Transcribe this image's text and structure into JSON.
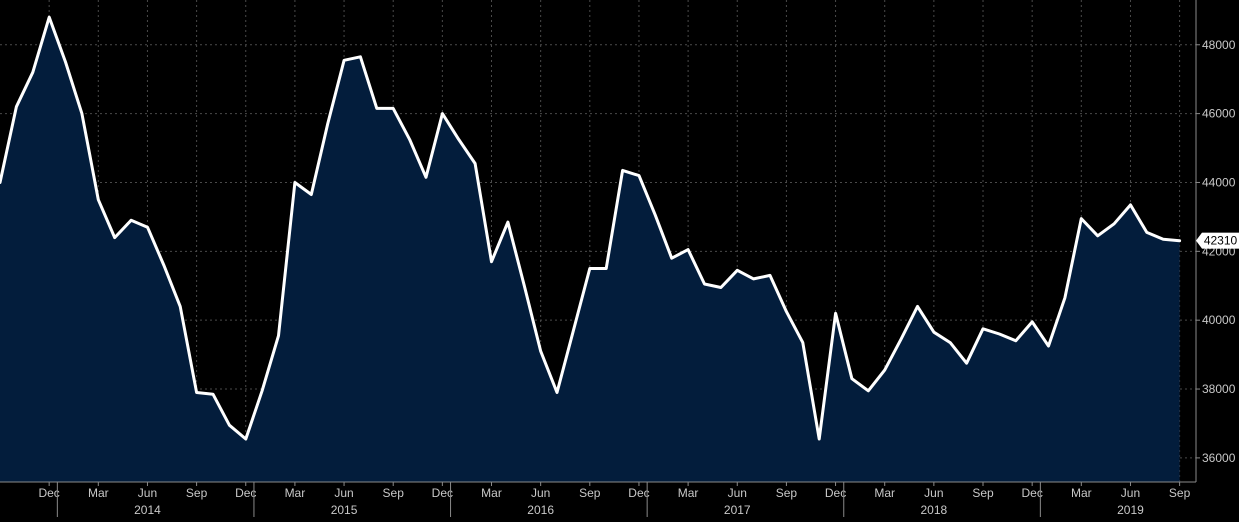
{
  "chart_data": {
    "type": "area",
    "title": "",
    "xlabel": "",
    "ylabel": "",
    "ylim": [
      35300,
      49300
    ],
    "x_range": [
      "2013-09",
      "2019-10"
    ],
    "y_ticks": [
      36000,
      38000,
      40000,
      42000,
      44000,
      46000,
      48000
    ],
    "y_tick_labels": [
      "36000",
      "38000",
      "40000",
      "42000",
      "44000",
      "46000",
      "48000"
    ],
    "x_ticks": [
      {
        "date": "2013-12",
        "label": "Dec"
      },
      {
        "date": "2014-03",
        "label": "Mar"
      },
      {
        "date": "2014-06",
        "label": "Jun"
      },
      {
        "date": "2014-09",
        "label": "Sep"
      },
      {
        "date": "2014-12",
        "label": "Dec"
      },
      {
        "date": "2015-03",
        "label": "Mar"
      },
      {
        "date": "2015-06",
        "label": "Jun"
      },
      {
        "date": "2015-09",
        "label": "Sep"
      },
      {
        "date": "2015-12",
        "label": "Dec"
      },
      {
        "date": "2016-03",
        "label": "Mar"
      },
      {
        "date": "2016-06",
        "label": "Jun"
      },
      {
        "date": "2016-09",
        "label": "Sep"
      },
      {
        "date": "2016-12",
        "label": "Dec"
      },
      {
        "date": "2017-03",
        "label": "Mar"
      },
      {
        "date": "2017-06",
        "label": "Jun"
      },
      {
        "date": "2017-09",
        "label": "Sep"
      },
      {
        "date": "2017-12",
        "label": "Dec"
      },
      {
        "date": "2018-03",
        "label": "Mar"
      },
      {
        "date": "2018-06",
        "label": "Jun"
      },
      {
        "date": "2018-09",
        "label": "Sep"
      },
      {
        "date": "2018-12",
        "label": "Dec"
      },
      {
        "date": "2019-03",
        "label": "Mar"
      },
      {
        "date": "2019-06",
        "label": "Jun"
      },
      {
        "date": "2019-09",
        "label": "Sep"
      }
    ],
    "year_labels": [
      {
        "label": "2014",
        "center": "2014-06"
      },
      {
        "label": "2015",
        "center": "2015-06"
      },
      {
        "label": "2016",
        "center": "2016-06"
      },
      {
        "label": "2017",
        "center": "2017-06"
      },
      {
        "label": "2018",
        "center": "2018-06"
      },
      {
        "label": "2019",
        "center": "2019-06"
      }
    ],
    "year_boundaries": [
      "2014-01",
      "2015-01",
      "2016-01",
      "2017-01",
      "2018-01",
      "2019-01"
    ],
    "last_value_label": "42310",
    "grid": true,
    "colors": {
      "background": "#000000",
      "area_fill": "#031d3c",
      "line": "#ffffff",
      "grid": "#4a4a4a",
      "axis_text": "#c8c8c8",
      "last_label_bg": "#ffffff",
      "last_label_text": "#000000"
    },
    "series": [
      {
        "x": [
          "2013-09",
          "2013-10",
          "2013-11",
          "2013-12",
          "2014-01",
          "2014-02",
          "2014-03",
          "2014-04",
          "2014-05",
          "2014-06",
          "2014-07",
          "2014-08",
          "2014-09",
          "2014-10",
          "2014-11",
          "2014-12",
          "2015-01",
          "2015-02",
          "2015-03",
          "2015-04",
          "2015-05",
          "2015-06",
          "2015-07",
          "2015-08",
          "2015-09",
          "2015-10",
          "2015-11",
          "2015-12",
          "2016-01",
          "2016-02",
          "2016-03",
          "2016-04",
          "2016-05",
          "2016-06",
          "2016-07",
          "2016-08",
          "2016-09",
          "2016-10",
          "2016-11",
          "2016-12",
          "2017-01",
          "2017-02",
          "2017-03",
          "2017-04",
          "2017-05",
          "2017-06",
          "2017-07",
          "2017-08",
          "2017-09",
          "2017-10",
          "2017-11",
          "2017-12",
          "2018-01",
          "2018-02",
          "2018-03",
          "2018-04",
          "2018-05",
          "2018-06",
          "2018-07",
          "2018-08",
          "2018-09",
          "2018-10",
          "2018-11",
          "2018-12",
          "2019-01",
          "2019-02",
          "2019-03",
          "2019-04",
          "2019-05",
          "2019-06",
          "2019-07",
          "2019-08",
          "2019-09"
        ],
        "values": [
          44000,
          46200,
          47200,
          48800,
          47500,
          46000,
          43500,
          42400,
          42900,
          42700,
          41600,
          40400,
          37900,
          37850,
          36950,
          36550,
          37950,
          39550,
          44000,
          43650,
          45700,
          47550,
          47650,
          46150,
          46150,
          45250,
          44150,
          46000,
          45250,
          44550,
          41700,
          42850,
          41000,
          39100,
          37900,
          39700,
          41500,
          41500,
          44350,
          44200,
          43050,
          41800,
          42050,
          41050,
          40950,
          41450,
          41200,
          41300,
          40250,
          39350,
          36550,
          40200,
          38300,
          37950,
          38550,
          39450,
          40400,
          39650,
          39350,
          38750,
          39750,
          39600,
          39400,
          39950,
          39250,
          40650,
          42950,
          42450,
          42800,
          43350,
          42550,
          42350,
          42310
        ]
      }
    ]
  }
}
